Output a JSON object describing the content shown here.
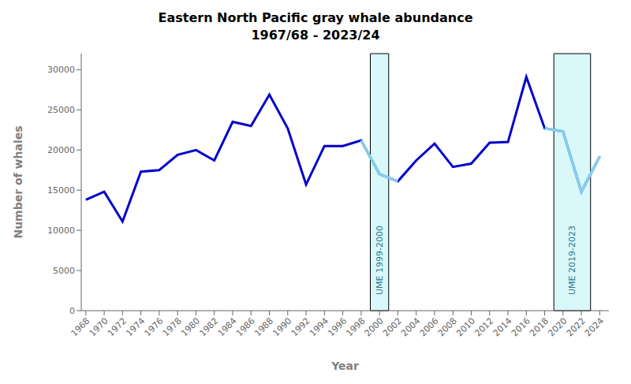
{
  "chart_data": {
    "type": "line",
    "title": "Eastern North Pacific gray whale abundance",
    "subtitle": "1967/68 - 2023/24",
    "x_label": "Year",
    "y_label": "Number of whales",
    "x": [
      1968,
      1970,
      1972,
      1974,
      1976,
      1978,
      1980,
      1982,
      1984,
      1986,
      1988,
      1990,
      1992,
      1994,
      1996,
      1998,
      2000,
      2002,
      2004,
      2006,
      2008,
      2010,
      2012,
      2014,
      2016,
      2018,
      2020,
      2022,
      2024
    ],
    "series": [
      {
        "color": "#0000CC",
        "values": [
          13800,
          14800,
          11100,
          17300,
          17500,
          19400,
          20000,
          18700,
          23500,
          23000,
          26900,
          22700,
          15700,
          20500,
          20500,
          21200,
          17000,
          16100,
          18700,
          20800,
          17900,
          18300,
          20900,
          21000,
          29100,
          22700,
          22300,
          14800,
          19200
        ]
      },
      {
        "color": "#87CEEB",
        "values": [
          null,
          null,
          null,
          null,
          null,
          null,
          null,
          null,
          null,
          null,
          null,
          null,
          null,
          null,
          null,
          21200,
          17000,
          16100,
          null,
          null,
          null,
          null,
          null,
          null,
          null,
          null,
          null,
          null,
          null
        ]
      },
      {
        "color": "#87CEEB",
        "values": [
          null,
          null,
          null,
          null,
          null,
          null,
          null,
          null,
          null,
          null,
          null,
          null,
          null,
          null,
          null,
          null,
          null,
          null,
          null,
          null,
          null,
          null,
          null,
          null,
          null,
          22700,
          22300,
          14800,
          19200
        ]
      }
    ],
    "spans": [
      {
        "x0": 1999,
        "x1": 2001,
        "label": "UME 1999-2000",
        "color": "#C8F5F8"
      },
      {
        "x0": 2019,
        "x1": 2023,
        "label": "UME 2019-2023",
        "color": "#C8F5F8"
      }
    ],
    "xlim": [
      1967.5,
      2025
    ],
    "xticks": [
      1968,
      1970,
      1972,
      1974,
      1976,
      1978,
      1980,
      1982,
      1984,
      1986,
      1988,
      1990,
      1992,
      1994,
      1996,
      1998,
      2000,
      2002,
      2004,
      2006,
      2008,
      2010,
      2012,
      2014,
      2016,
      2018,
      2020,
      2022,
      2024
    ],
    "ylim": [
      0,
      32000
    ],
    "yticks": [
      0,
      5000,
      10000,
      15000,
      20000,
      25000,
      30000
    ],
    "grid": false
  }
}
